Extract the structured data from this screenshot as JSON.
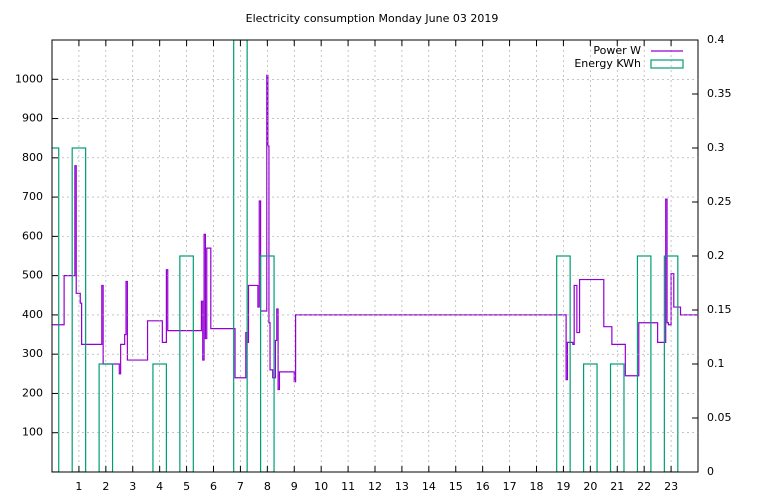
{
  "chart_data": {
    "type": "line",
    "title": "Electricity consumption Monday June 03 2019",
    "xlim": [
      0,
      24
    ],
    "xticks": [
      1,
      2,
      3,
      4,
      5,
      6,
      7,
      8,
      9,
      10,
      11,
      12,
      13,
      14,
      15,
      16,
      17,
      18,
      19,
      20,
      21,
      22,
      23
    ],
    "ylim": [
      0,
      1100
    ],
    "yticks": [
      100,
      200,
      300,
      400,
      500,
      600,
      700,
      800,
      900,
      1000
    ],
    "y2lim": [
      0,
      0.4
    ],
    "y2ticks": [
      0,
      0.05,
      0.1,
      0.15,
      0.2,
      0.25,
      0.3,
      0.35,
      0.4
    ],
    "grid": true,
    "legend": "top-right",
    "series": [
      {
        "name": "Power W",
        "color": "#9400d3",
        "type": "step",
        "x": [
          0,
          0.45,
          0.85,
          0.9,
          1.05,
          1.1,
          1.85,
          1.9,
          2.45,
          2.5,
          2.55,
          2.7,
          2.75,
          2.8,
          3.55,
          4.1,
          4.25,
          4.3,
          4.35,
          5.55,
          5.6,
          5.65,
          5.7,
          5.75,
          5.9,
          6.8,
          7.2,
          7.25,
          7.3,
          7.65,
          7.7,
          7.75,
          7.98,
          8.02,
          8.06,
          8.1,
          8.2,
          8.3,
          8.35,
          8.4,
          8.45,
          8.5,
          9.0,
          9.05,
          19.0,
          19.1,
          19.15,
          19.35,
          19.4,
          19.5,
          19.6,
          20.5,
          20.8,
          21.3,
          21.8,
          22.5,
          22.8,
          22.85,
          22.9,
          23.0,
          23.1,
          23.35,
          23.4,
          24
        ],
        "values": [
          375,
          500,
          780,
          455,
          430,
          325,
          475,
          275,
          275,
          250,
          325,
          350,
          485,
          285,
          385,
          330,
          515,
          360,
          360,
          435,
          285,
          605,
          340,
          570,
          365,
          240,
          355,
          330,
          475,
          420,
          690,
          410,
          1010,
          830,
          380,
          260,
          240,
          335,
          415,
          210,
          255,
          255,
          230,
          400,
          400,
          235,
          330,
          325,
          475,
          355,
          490,
          370,
          325,
          245,
          380,
          330,
          695,
          380,
          375,
          505,
          420,
          400,
          400,
          395
        ]
      },
      {
        "name": "Energy KWh",
        "color": "#009e73",
        "type": "boxes",
        "axis": "y2",
        "x": [
          0,
          1,
          2,
          4,
          5,
          7,
          8,
          19,
          20,
          21,
          22,
          23
        ],
        "values": [
          0.3,
          0.3,
          0.1,
          0.1,
          0.2,
          0.4,
          0.2,
          0.2,
          0.1,
          0.1,
          0.2,
          0.2
        ]
      }
    ]
  }
}
